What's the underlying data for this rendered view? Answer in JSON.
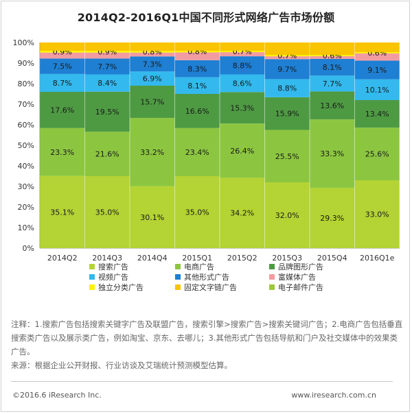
{
  "chart_data": {
    "type": "bar",
    "stacked": true,
    "title": "2014Q2-2016Q1中国不同形式网络广告市场份额",
    "categories": [
      "2014Q2",
      "2014Q3",
      "2014Q4",
      "2015Q1",
      "2015Q2",
      "2015Q3",
      "2015Q4",
      "2016Q1e"
    ],
    "yticks": [
      "0%",
      "10%",
      "20%",
      "30%",
      "40%",
      "50%",
      "60%",
      "70%",
      "80%",
      "90%",
      "100%"
    ],
    "ylim": [
      0,
      100
    ],
    "series": [
      {
        "name": "搜索广告",
        "color": "#b4d334",
        "values": [
          35.1,
          35.0,
          30.1,
          35.0,
          34.2,
          32.0,
          29.3,
          33.0
        ],
        "labels": [
          "35.1%",
          "35.0%",
          "30.1%",
          "35.0%",
          "34.2%",
          "32.0%",
          "29.3%",
          "33.0%"
        ]
      },
      {
        "name": "电商广告",
        "color": "#8cc640",
        "values": [
          23.3,
          21.6,
          33.2,
          23.4,
          26.4,
          25.5,
          33.3,
          25.6
        ],
        "labels": [
          "23.3%",
          "21.6%",
          "33.2%",
          "23.4%",
          "26.4%",
          "25.5%",
          "33.3%",
          "25.6%"
        ]
      },
      {
        "name": "品牌图形广告",
        "color": "#4e9a43",
        "values": [
          17.6,
          19.5,
          15.7,
          16.6,
          15.3,
          15.9,
          13.6,
          13.4
        ],
        "labels": [
          "17.6%",
          "19.5%",
          "15.7%",
          "16.6%",
          "15.3%",
          "15.9%",
          "13.6%",
          "13.4%"
        ]
      },
      {
        "name": "视频广告",
        "color": "#33b9ed",
        "values": [
          8.7,
          8.4,
          6.9,
          8.1,
          8.6,
          8.8,
          7.7,
          10.1
        ],
        "labels": [
          "8.7%",
          "8.4%",
          "6.9%",
          "8.1%",
          "8.6%",
          "8.8%",
          "7.7%",
          "10.1%"
        ]
      },
      {
        "name": "其他形式广告",
        "color": "#1e7fd3",
        "values": [
          7.5,
          7.7,
          7.3,
          8.3,
          8.8,
          9.7,
          8.1,
          9.1
        ],
        "labels": [
          "7.5%",
          "7.7%",
          "7.3%",
          "8.3%",
          "8.8%",
          "9.7%",
          "8.1%",
          "9.1%"
        ]
      },
      {
        "name": "富媒体广告",
        "color": "#f29ca2",
        "values": [
          2.9,
          2.9,
          1.9,
          3.8,
          2.0,
          1.4,
          1.4,
          3.5
        ],
        "labels": []
      },
      {
        "name": "独立分类广告",
        "color": "#fff200",
        "values": [
          0.9,
          0.9,
          0.8,
          0.8,
          0.7,
          0.7,
          0.6,
          0.6
        ],
        "labels": [
          "0.9%",
          "0.9%",
          "0.8%",
          "0.8%",
          "0.7%",
          "0.7%",
          "0.6%",
          "0.6%"
        ]
      },
      {
        "name": "固定文字链广告",
        "color": "#f9c400",
        "values": [
          4.0,
          4.0,
          4.1,
          4.0,
          4.0,
          6.0,
          6.0,
          4.7
        ],
        "labels": []
      },
      {
        "name": "电子邮件广告",
        "color": "#9ac83a",
        "values": [
          0,
          0,
          0,
          0,
          0,
          0,
          0,
          0
        ],
        "labels": []
      }
    ],
    "legend": {
      "placement": "bottom",
      "columns": 3
    }
  },
  "notes": [
    "注释：1.搜索广告包括搜索关键字广告及联盟广告，搜索引擎>搜索广告>搜索关键词广告；2.电商广告包括垂直搜索类广告以及展示类广告，例如淘宝、京东、去哪儿；3.其他形式广告包括导航和门户及社交媒体中的效果类广告。",
    "来源：根据企业公开财报、行业访谈及艾瑞统计预测模型估算。"
  ],
  "footer": {
    "copyright": "©2016.6 iResearch Inc.",
    "website": "www.iresearch.com.cn"
  }
}
